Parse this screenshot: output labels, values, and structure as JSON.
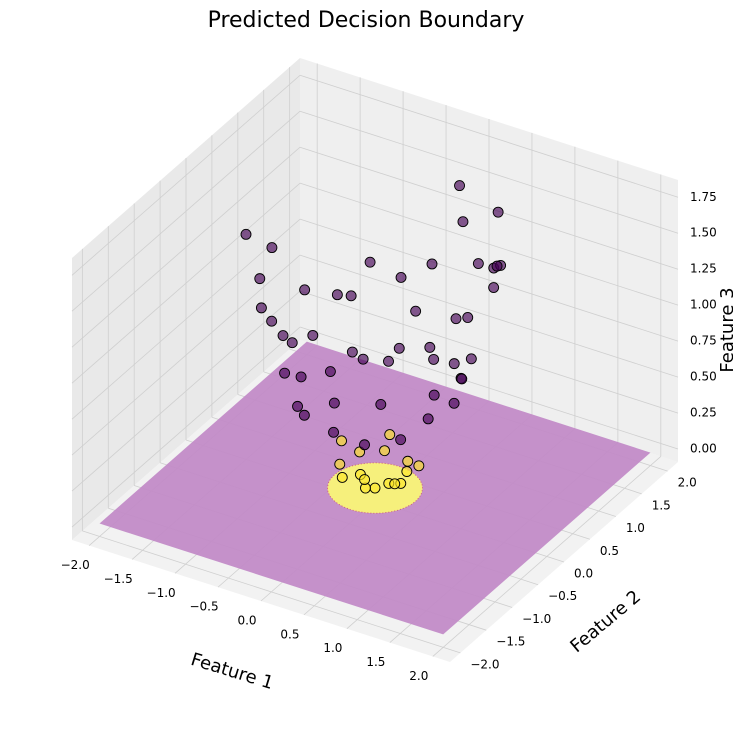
{
  "chart_data": {
    "type": "scatter3d",
    "title": "Predicted Decision Boundary",
    "xlabel": "Feature 1",
    "ylabel": "Feature 2",
    "zlabel": "Feature 3",
    "xlim": [
      -2.2,
      2.2
    ],
    "ylim": [
      -2.2,
      2.2
    ],
    "zlim": [
      -0.09,
      1.87
    ],
    "xticks": [
      {
        "value": -2,
        "label": "−2.0"
      },
      {
        "value": -1.5,
        "label": "−1.5"
      },
      {
        "value": -1,
        "label": "−1.0"
      },
      {
        "value": -0.5,
        "label": "−0.5"
      },
      {
        "value": 0,
        "label": "0.0"
      },
      {
        "value": 0.5,
        "label": "0.5"
      },
      {
        "value": 1,
        "label": "1.0"
      },
      {
        "value": 1.5,
        "label": "1.5"
      },
      {
        "value": 2,
        "label": "2.0"
      }
    ],
    "yticks": [
      {
        "value": -2,
        "label": "−2.0"
      },
      {
        "value": -1.5,
        "label": "−1.5"
      },
      {
        "value": -1,
        "label": "−1.0"
      },
      {
        "value": -0.5,
        "label": "−0.5"
      },
      {
        "value": 0,
        "label": "0.0"
      },
      {
        "value": 0.5,
        "label": "0.5"
      },
      {
        "value": 1,
        "label": "1.0"
      },
      {
        "value": 1.5,
        "label": "1.5"
      },
      {
        "value": 2,
        "label": "2.0"
      }
    ],
    "zticks": [
      {
        "value": 0,
        "label": "0.00"
      },
      {
        "value": 0.25,
        "label": "0.25"
      },
      {
        "value": 0.5,
        "label": "0.50"
      },
      {
        "value": 0.75,
        "label": "0.75"
      },
      {
        "value": 1,
        "label": "1.00"
      },
      {
        "value": 1.25,
        "label": "1.25"
      },
      {
        "value": 1.5,
        "label": "1.50"
      },
      {
        "value": 1.75,
        "label": "1.75"
      }
    ],
    "grid": true,
    "surface": {
      "z": 0,
      "colors": [
        "#c28bc7",
        "#f6f07c"
      ]
    },
    "series": [
      {
        "color": "#440154",
        "x": [
          1.2,
          1.1,
          0.9,
          0.6,
          0.3,
          0.0,
          -0.3,
          -0.6,
          -0.8,
          -1.0,
          -1.2,
          -1.1,
          -0.9,
          -0.6,
          -0.3,
          0.0,
          0.4,
          0.7,
          1.0,
          1.2,
          0.8,
          0.7,
          0.5,
          0.2,
          -0.2,
          -0.5,
          -0.7,
          -0.8,
          -0.6,
          -0.4,
          0.0,
          0.3,
          0.6,
          0.8,
          0.95,
          0.85,
          0.4,
          -0.1,
          -0.7,
          -0.95,
          -0.6,
          0.1,
          0.55,
          0.9,
          1.3,
          0.2,
          -1.2,
          0.8
        ],
        "y": [
          0.3,
          0.6,
          0.8,
          1.0,
          1.2,
          1.1,
          1.0,
          0.9,
          0.6,
          0.3,
          0.0,
          -0.4,
          -0.7,
          -1.0,
          -1.1,
          -1.2,
          -1.1,
          -0.9,
          -0.6,
          -0.2,
          0.2,
          0.5,
          0.7,
          0.8,
          0.8,
          0.6,
          0.3,
          -0.1,
          -0.5,
          -0.7,
          -0.8,
          -0.7,
          -0.5,
          -0.3,
          0.1,
          0.45,
          0.9,
          0.95,
          0.7,
          -0.2,
          -0.75,
          -0.95,
          -0.8,
          -0.35,
          0.2,
          1.3,
          -0.5,
          1.05
        ],
        "z": [
          1.53,
          1.57,
          1.45,
          1.36,
          1.53,
          1.21,
          1.09,
          1.17,
          1.0,
          1.09,
          1.44,
          1.37,
          1.3,
          1.36,
          1.3,
          1.44,
          1.37,
          1.3,
          1.36,
          1.48,
          0.68,
          0.74,
          0.74,
          0.68,
          0.68,
          0.61,
          0.58,
          0.65,
          0.61,
          0.65,
          0.64,
          0.58,
          0.61,
          0.73,
          0.91,
          0.92,
          0.97,
          0.91,
          0.98,
          0.94,
          0.92,
          0.91,
          0.94,
          0.93,
          1.73,
          1.73,
          1.69,
          1.74
        ]
      },
      {
        "color": "#fde725",
        "x": [
          0.1,
          0.3,
          0.2,
          -0.1,
          -0.3,
          -0.35,
          -0.2,
          0.1,
          0.35,
          0.0,
          0.45,
          -0.1,
          -0.45,
          0.15,
          0.25,
          -0.2
        ],
        "y": [
          0.1,
          0.0,
          0.3,
          0.35,
          0.2,
          -0.1,
          -0.3,
          -0.35,
          -0.2,
          0.0,
          0.1,
          0.45,
          0.1,
          -0.45,
          0.2,
          0.05
        ],
        "z": [
          0.02,
          0.09,
          0.13,
          0.13,
          0.13,
          0.13,
          0.13,
          0.13,
          0.16,
          0.0,
          0.21,
          0.21,
          0.21,
          0.23,
          0.1,
          0.04
        ]
      }
    ]
  }
}
